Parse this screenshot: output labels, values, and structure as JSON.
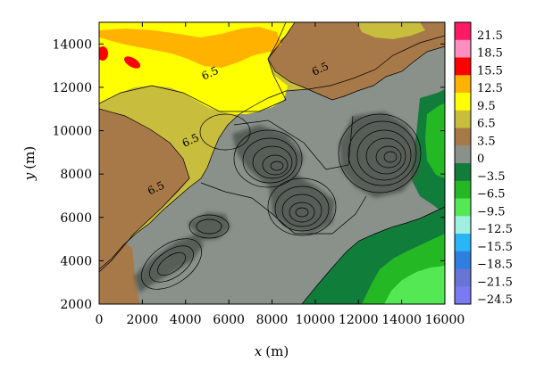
{
  "chart_data": {
    "type": "heatmap",
    "subtype": "filled-contour",
    "title": "",
    "xlabel": "x (m)",
    "ylabel": "y (m)",
    "xlabel_var": "x",
    "xlabel_unit": "(m)",
    "ylabel_var": "y",
    "ylabel_unit": "(m)",
    "xlim": [
      0,
      16000
    ],
    "ylim": [
      2000,
      15000
    ],
    "x_ticks": [
      0,
      2000,
      4000,
      6000,
      8000,
      10000,
      12000,
      14000,
      16000
    ],
    "y_ticks": [
      2000,
      4000,
      6000,
      8000,
      10000,
      12000,
      14000
    ],
    "x_tick_labels": [
      "0",
      "2000",
      "4000",
      "6000",
      "8000",
      "10000",
      "12000",
      "14000",
      "16000"
    ],
    "y_tick_labels": [
      "2000",
      "4000",
      "6000",
      "8000",
      "10000",
      "12000",
      "14000"
    ],
    "grid": false,
    "colorbar": {
      "position": "right",
      "levels": [
        {
          "label": "21.5",
          "color": "#ff1a66"
        },
        {
          "label": "18.5",
          "color": "#ff8fc0"
        },
        {
          "label": "15.5",
          "color": "#ff0000"
        },
        {
          "label": "12.5",
          "color": "#ffb300"
        },
        {
          "label": "9.5",
          "color": "#ffff00"
        },
        {
          "label": "6.5",
          "color": "#c8bd3c"
        },
        {
          "label": "3.5",
          "color": "#a87948"
        },
        {
          "label": "0",
          "color": "#8a918a"
        },
        {
          "label": "−3.5",
          "color": "#117d3a"
        },
        {
          "label": "−6.5",
          "color": "#25b825"
        },
        {
          "label": "−9.5",
          "color": "#55e855"
        },
        {
          "label": "−12.5",
          "color": "#9ff0e0"
        },
        {
          "label": "−15.5",
          "color": "#29b6f6"
        },
        {
          "label": "−18.5",
          "color": "#2f7fe0"
        },
        {
          "label": "−21.5",
          "color": "#6675d6"
        },
        {
          "label": "−24.5",
          "color": "#7a7af2"
        }
      ]
    },
    "contour_labels": [
      {
        "text": "6.5",
        "x": 5200,
        "y": 12500
      },
      {
        "text": "6.5",
        "x": 10300,
        "y": 12700
      },
      {
        "text": "6.5",
        "x": 4300,
        "y": 9400
      },
      {
        "text": "6.5",
        "x": 2700,
        "y": 7200
      }
    ]
  }
}
